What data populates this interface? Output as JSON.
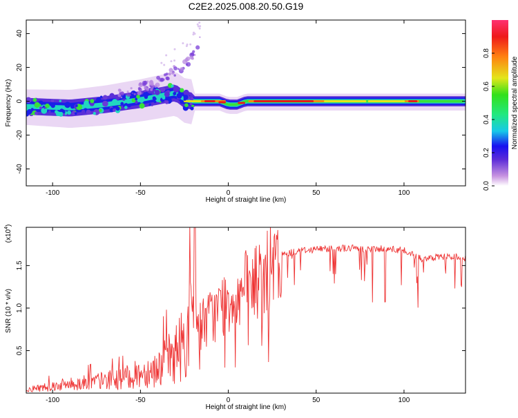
{
  "title": "C2E2.2025.008.20.50.G19",
  "chart_data": [
    {
      "type": "heatmap",
      "xlabel": "Height of straight line (km)",
      "ylabel": "Frequency (Hz)",
      "xlim": [
        -115,
        135
      ],
      "ylim": [
        -50,
        48
      ],
      "xticks": [
        -100,
        -50,
        0,
        50,
        100
      ],
      "yticks": [
        -40,
        -20,
        0,
        20,
        40
      ],
      "colorbar": {
        "label": "Normalized spectral amplitude",
        "range": [
          0,
          1
        ],
        "ticks": [
          "0.0",
          "0.2",
          "0.4",
          "0.6",
          "0.8"
        ]
      },
      "band_center": [
        {
          "x": -115,
          "y": -3
        },
        {
          "x": -90,
          "y": -4
        },
        {
          "x": -70,
          "y": -2
        },
        {
          "x": -50,
          "y": 1
        },
        {
          "x": -30,
          "y": 5
        },
        {
          "x": -25,
          "y": 1
        },
        {
          "x": -20,
          "y": 0
        },
        {
          "x": -5,
          "y": 0
        },
        {
          "x": 0,
          "y": -2
        },
        {
          "x": 5,
          "y": -2
        },
        {
          "x": 10,
          "y": 0
        },
        {
          "x": 135,
          "y": 0
        }
      ],
      "scatter_branch": [
        {
          "x": -60,
          "y": 5
        },
        {
          "x": -45,
          "y": 9
        },
        {
          "x": -35,
          "y": 15
        },
        {
          "x": -25,
          "y": 22
        },
        {
          "x": -18,
          "y": 30
        },
        {
          "x": -16,
          "y": 37
        }
      ]
    },
    {
      "type": "line",
      "xlabel": "Height of straight line (km)",
      "ylabel": "SNR (10 * v/v)",
      "y_multiplier": "(x10^4)",
      "xlim": [
        -115,
        135
      ],
      "ylim": [
        0,
        1.95
      ],
      "xticks": [
        -100,
        -50,
        0,
        50,
        100
      ],
      "yticks": [
        "0.5",
        "1.0",
        "1.5"
      ],
      "color": "#ee3333",
      "series": [
        {
          "x": [
            -115,
            -100,
            -80,
            -60,
            -40,
            -30,
            -25,
            -22,
            -20,
            -15,
            -10,
            -5,
            0,
            10,
            20,
            25,
            30,
            40,
            50,
            60,
            70,
            80,
            90,
            100,
            105,
            110,
            120,
            130,
            135
          ],
          "y": [
            0.05,
            0.1,
            0.15,
            0.2,
            0.35,
            0.55,
            0.75,
            0.9,
            1.0,
            0.9,
            1.0,
            1.1,
            1.25,
            1.35,
            1.5,
            1.62,
            1.65,
            1.7,
            1.72,
            1.73,
            1.73,
            1.72,
            1.73,
            1.7,
            1.65,
            1.6,
            1.62,
            1.63,
            1.6
          ]
        }
      ]
    }
  ]
}
